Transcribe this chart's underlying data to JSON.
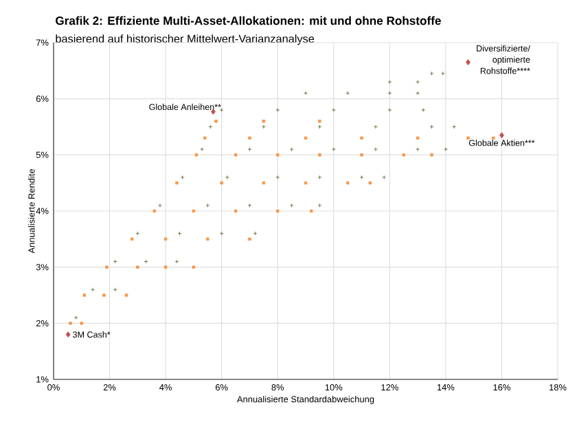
{
  "chart_data": {
    "type": "scatter",
    "title": "Grafik 2: Effiziente Multi-Asset-Allokationen: mit und ohne Rohstoffe",
    "subtitle": "basierend auf historischer Mittelwert-Varianzanalyse",
    "xlabel": "Annualisierte Standardabweichung",
    "ylabel": "Annualisierte Rendite",
    "xlim": [
      0,
      18
    ],
    "ylim": [
      1,
      7
    ],
    "xticks": [
      {
        "value": 0,
        "label": "0%"
      },
      {
        "value": 2,
        "label": "2%"
      },
      {
        "value": 4,
        "label": "4%"
      },
      {
        "value": 6,
        "label": "6%"
      },
      {
        "value": 8,
        "label": "8%"
      },
      {
        "value": 10,
        "label": "10%"
      },
      {
        "value": 12,
        "label": "12%"
      },
      {
        "value": 14,
        "label": "14%"
      },
      {
        "value": 16,
        "label": "16%"
      },
      {
        "value": 18,
        "label": "18%"
      }
    ],
    "yticks": [
      {
        "value": 1,
        "label": "1%"
      },
      {
        "value": 2,
        "label": "2%"
      },
      {
        "value": 3,
        "label": "3%"
      },
      {
        "value": 4,
        "label": "4%"
      },
      {
        "value": 5,
        "label": "5%"
      },
      {
        "value": 6,
        "label": "6%"
      },
      {
        "value": 7,
        "label": "7%"
      }
    ],
    "grid": true,
    "series": [
      {
        "color": "#f79646",
        "marker": "square",
        "x": [
          0.6,
          1.0,
          1.1,
          1.8,
          2.6,
          1.9,
          3.0,
          4.0,
          5.0,
          2.8,
          4.0,
          5.5,
          7.0,
          3.6,
          5.0,
          6.5,
          8.0,
          9.2,
          4.4,
          6.0,
          7.5,
          9.0,
          10.5,
          11.3,
          5.1,
          6.5,
          8.0,
          9.5,
          11.0,
          12.5,
          13.5,
          5.4,
          7.0,
          9.0,
          11.0,
          13.0,
          14.8,
          15.7,
          5.8,
          7.5,
          9.5
        ],
        "values": [
          2.0,
          2.0,
          2.5,
          2.5,
          2.5,
          3.0,
          3.0,
          3.0,
          3.0,
          3.5,
          3.5,
          3.5,
          3.5,
          4.0,
          4.0,
          4.0,
          4.0,
          4.0,
          4.5,
          4.5,
          4.5,
          4.5,
          4.5,
          4.5,
          5.0,
          5.0,
          5.0,
          5.0,
          5.0,
          5.0,
          5.0,
          5.3,
          5.3,
          5.3,
          5.3,
          5.3,
          5.3,
          5.3,
          5.6,
          5.6,
          5.6
        ]
      },
      {
        "color": "#4f6228",
        "marker": "cross",
        "x": [
          0.8,
          1.4,
          2.2,
          2.2,
          3.3,
          4.4,
          3.0,
          4.5,
          6.0,
          7.2,
          3.8,
          5.5,
          7.0,
          8.5,
          9.5,
          4.6,
          6.2,
          8.0,
          9.5,
          11.0,
          11.8,
          5.3,
          7.0,
          8.5,
          10.0,
          11.5,
          13.0,
          14.0,
          5.6,
          7.5,
          9.5,
          11.5,
          13.5,
          14.3,
          6.0,
          8.0,
          10.0,
          12.0,
          13.2,
          9.0,
          10.5,
          12.0,
          13.0,
          12.0,
          13.0,
          13.5,
          13.9
        ],
        "values": [
          2.1,
          2.6,
          2.6,
          3.1,
          3.1,
          3.1,
          3.6,
          3.6,
          3.6,
          3.6,
          4.1,
          4.1,
          4.1,
          4.1,
          4.1,
          4.6,
          4.6,
          4.6,
          4.6,
          4.6,
          4.6,
          5.1,
          5.1,
          5.1,
          5.1,
          5.1,
          5.1,
          5.1,
          5.5,
          5.5,
          5.5,
          5.5,
          5.5,
          5.5,
          5.8,
          5.8,
          5.8,
          5.8,
          5.8,
          6.1,
          6.1,
          6.1,
          6.1,
          6.3,
          6.3,
          6.45,
          6.45
        ]
      },
      {
        "color": "#c0504d",
        "marker": "diamond",
        "x": [
          0.52,
          5.7,
          16.0,
          14.8
        ],
        "values": [
          1.8,
          5.77,
          5.35,
          6.65
        ]
      }
    ],
    "annotations": [
      {
        "text": "3M Cash*",
        "x": 0.52,
        "y": 1.8
      },
      {
        "text": "Globale Anleihen**",
        "x": 5.7,
        "y": 5.77
      },
      {
        "text": "Globale Aktien***",
        "x": 16.0,
        "y": 5.35
      },
      {
        "text": "Diversifizierte/ optimierte Rohstoffe****",
        "x": 14.8,
        "y": 6.65
      }
    ]
  }
}
